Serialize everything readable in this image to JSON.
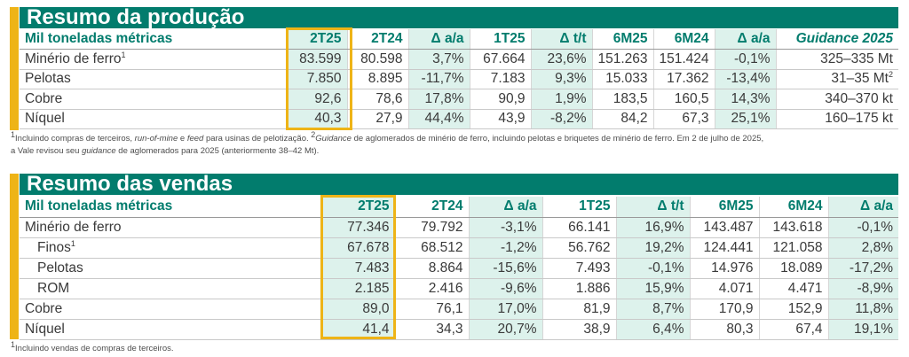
{
  "colors": {
    "accent_green": "#027c6d",
    "accent_gold": "#eeb417",
    "tint": "#ddf2ec"
  },
  "production": {
    "title": "Resumo da produção",
    "header": [
      "Mil toneladas métricas",
      "2T25",
      "2T24",
      "Δ a/a",
      "1T25",
      "Δ t/t",
      "6M25",
      "6M24",
      "Δ a/a",
      "Guidance 2025"
    ],
    "rows": [
      {
        "label": "Minério de ferro",
        "sup": "1",
        "cells": [
          "83.599",
          "80.598",
          "3,7%",
          "67.664",
          "23,6%",
          "151.263",
          "151.424",
          "-0,1%",
          "325–335 Mt"
        ]
      },
      {
        "label": "Pelotas",
        "sup": "",
        "cells": [
          "7.850",
          "8.895",
          "-11,7%",
          "7.183",
          "9,3%",
          "15.033",
          "17.362",
          "-13,4%",
          "31–35 Mt"
        ],
        "last_sup": "2"
      },
      {
        "label": "Cobre",
        "sup": "",
        "cells": [
          "92,6",
          "78,6",
          "17,8%",
          "90,9",
          "1,9%",
          "183,5",
          "160,5",
          "14,3%",
          "340–370 kt"
        ]
      },
      {
        "label": "Níquel",
        "sup": "",
        "cells": [
          "40,3",
          "27,9",
          "44,4%",
          "43,9",
          "-8,2%",
          "84,2",
          "67,3",
          "25,1%",
          "160–175 kt"
        ]
      }
    ],
    "footnote": {
      "n1": "1",
      "t1": "Incluindo compras de terceiros, ",
      "i1": "run-of-mine",
      "t2": " e ",
      "i2": "feed",
      "t3": " para usinas de pelotização. ",
      "n2": "2",
      "i3": "Guidance",
      "t4": " de aglomerados de minério de ferro, incluindo pelotas e briquetes de minério de ferro. Em 2 de julho de 2025,",
      "t5": "a Vale revisou seu ",
      "i4": "guidance",
      "t6": " de aglomerados para 2025 (anteriormente 38–42 Mt)."
    }
  },
  "sales": {
    "title": "Resumo das vendas",
    "header": [
      "Mil toneladas métricas",
      "2T25",
      "2T24",
      "Δ a/a",
      "1T25",
      "Δ t/t",
      "6M25",
      "6M24",
      "Δ a/a"
    ],
    "rows": [
      {
        "label": "Minério de ferro",
        "sup": "",
        "indent": false,
        "cells": [
          "77.346",
          "79.792",
          "-3,1%",
          "66.141",
          "16,9%",
          "143.487",
          "143.618",
          "-0,1%"
        ]
      },
      {
        "label": "Finos",
        "sup": "1",
        "indent": true,
        "cells": [
          "67.678",
          "68.512",
          "-1,2%",
          "56.762",
          "19,2%",
          "124.441",
          "121.058",
          "2,8%"
        ]
      },
      {
        "label": "Pelotas",
        "sup": "",
        "indent": true,
        "cells": [
          "7.483",
          "8.864",
          "-15,6%",
          "7.493",
          "-0,1%",
          "14.976",
          "18.089",
          "-17,2%"
        ]
      },
      {
        "label": "ROM",
        "sup": "",
        "indent": true,
        "cells": [
          "2.185",
          "2.416",
          "-9,6%",
          "1.886",
          "15,9%",
          "4.071",
          "4.471",
          "-8,9%"
        ]
      },
      {
        "label": "Cobre",
        "sup": "",
        "indent": false,
        "cells": [
          "89,0",
          "76,1",
          "17,0%",
          "81,9",
          "8,7%",
          "170,9",
          "152,9",
          "11,8%"
        ]
      },
      {
        "label": "Níquel",
        "sup": "",
        "indent": false,
        "cells": [
          "41,4",
          "34,3",
          "20,7%",
          "38,9",
          "6,4%",
          "80,3",
          "67,4",
          "19,1%"
        ]
      }
    ],
    "footnote": {
      "n1": "1",
      "t1": "Incluindo vendas de compras de terceiros."
    }
  }
}
